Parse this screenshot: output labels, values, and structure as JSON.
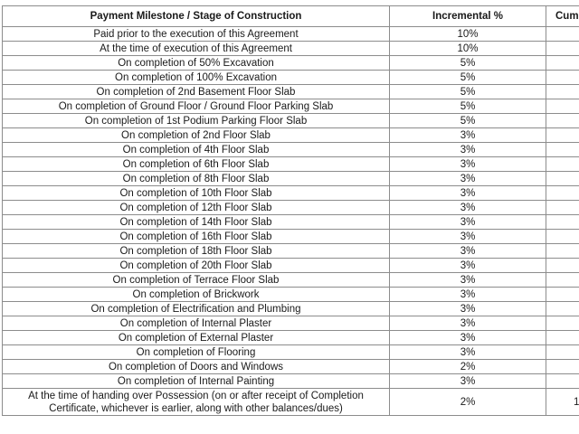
{
  "table": {
    "headers": [
      "Payment Milestone / Stage of Construction",
      "Incremental %",
      "Cumu"
    ],
    "rows": [
      {
        "stage": "Paid prior to the execution of this Agreement",
        "pct": "10%",
        "cum": ""
      },
      {
        "stage": "At the time of execution of this Agreement",
        "pct": "10%",
        "cum": ""
      },
      {
        "stage": "On completion of 50% Excavation",
        "pct": "5%",
        "cum": ""
      },
      {
        "stage": "On completion of 100% Excavation",
        "pct": "5%",
        "cum": ""
      },
      {
        "stage": "On completion of 2nd Basement Floor Slab",
        "pct": "5%",
        "cum": ""
      },
      {
        "stage": "On completion of Ground Floor / Ground Floor Parking Slab",
        "pct": "5%",
        "cum": ""
      },
      {
        "stage": "On completion of 1st Podium Parking Floor Slab",
        "pct": "5%",
        "cum": ""
      },
      {
        "stage": "On completion of 2nd Floor Slab",
        "pct": "3%",
        "cum": ""
      },
      {
        "stage": "On completion of 4th Floor Slab",
        "pct": "3%",
        "cum": ""
      },
      {
        "stage": "On completion of 6th Floor Slab",
        "pct": "3%",
        "cum": ""
      },
      {
        "stage": "On completion of 8th Floor Slab",
        "pct": "3%",
        "cum": ""
      },
      {
        "stage": "On completion of 10th Floor Slab",
        "pct": "3%",
        "cum": ""
      },
      {
        "stage": "On completion of 12th Floor Slab",
        "pct": "3%",
        "cum": ""
      },
      {
        "stage": "On completion of 14th Floor Slab",
        "pct": "3%",
        "cum": ""
      },
      {
        "stage": "On completion of 16th Floor Slab",
        "pct": "3%",
        "cum": ""
      },
      {
        "stage": "On completion of 18th Floor Slab",
        "pct": "3%",
        "cum": ""
      },
      {
        "stage": "On completion of 20th Floor Slab",
        "pct": "3%",
        "cum": ""
      },
      {
        "stage": "On completion of Terrace Floor Slab",
        "pct": "3%",
        "cum": ""
      },
      {
        "stage": "On completion of Brickwork",
        "pct": "3%",
        "cum": ""
      },
      {
        "stage": "On completion of Electrification and Plumbing",
        "pct": "3%",
        "cum": ""
      },
      {
        "stage": "On completion of Internal Plaster",
        "pct": "3%",
        "cum": ""
      },
      {
        "stage": "On completion of External Plaster",
        "pct": "3%",
        "cum": ""
      },
      {
        "stage": "On completion of Flooring",
        "pct": "3%",
        "cum": ""
      },
      {
        "stage": "On completion of Doors and Windows",
        "pct": "2%",
        "cum": ""
      },
      {
        "stage": "On completion of Internal Painting",
        "pct": "3%",
        "cum": ""
      },
      {
        "stage": "At the time of handing over Possession (on or after receipt of Completion Certificate, whichever is earlier, along with other balances/dues)",
        "pct": "2%",
        "cum": "1"
      }
    ]
  },
  "colors": {
    "border": "#8c8c8c",
    "text": "#1a1a1a",
    "background": "#ffffff"
  }
}
